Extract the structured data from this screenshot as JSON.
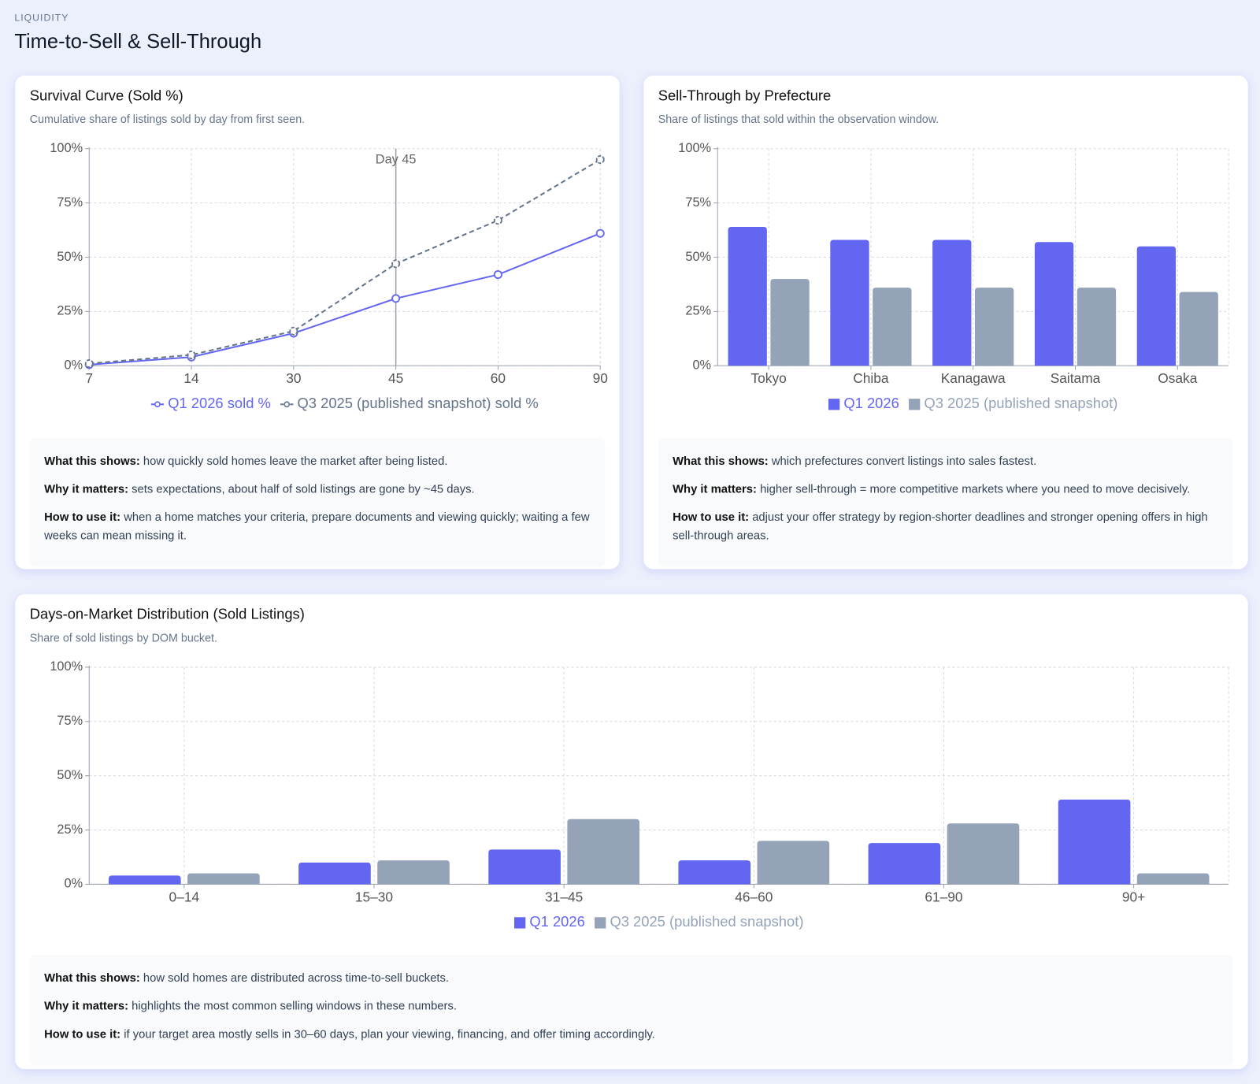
{
  "header": {
    "eyebrow": "LIQUIDITY",
    "title": "Time-to-Sell & Sell-Through"
  },
  "chart_data": [
    {
      "type": "line",
      "title": "Survival Curve (Sold %)",
      "subtitle": "Cumulative share of listings sold by day from first seen.",
      "categories": [
        "7",
        "14",
        "30",
        "45",
        "60",
        "90"
      ],
      "series": [
        {
          "name": "Q1 2026 sold %",
          "color": "#6366f1",
          "line_style": "solid",
          "values": [
            0.5,
            4,
            15,
            31,
            42,
            61
          ]
        },
        {
          "name": "Q3 2025 (published snapshot) sold %",
          "color": "#64748b",
          "line_style": "dashed",
          "values": [
            1,
            5,
            16,
            47,
            67,
            95
          ]
        }
      ],
      "ylim": [
        0,
        100
      ],
      "yticks": [
        {
          "value": 0,
          "label": "0%"
        },
        {
          "value": 25,
          "label": "25%"
        },
        {
          "value": 50,
          "label": "50%"
        },
        {
          "value": 75,
          "label": "75%"
        },
        {
          "value": 100,
          "label": "100%"
        }
      ],
      "grid": true,
      "annotation": {
        "x": "45",
        "text": "Day 45"
      },
      "notes": [
        {
          "lead": "What this shows:",
          "text": "how quickly sold homes leave the market after being listed."
        },
        {
          "lead": "Why it matters:",
          "text": "sets expectations, about half of sold listings are gone by ~45 days."
        },
        {
          "lead": "How to use it:",
          "text": "when a home matches your criteria, prepare documents and viewing quickly; waiting a few weeks can mean missing it."
        }
      ]
    },
    {
      "type": "bar",
      "title": "Sell-Through by Prefecture",
      "subtitle": "Share of listings that sold within the observation window.",
      "categories": [
        "Tokyo",
        "Chiba",
        "Kanagawa",
        "Saitama",
        "Osaka"
      ],
      "series": [
        {
          "name": "Q1 2026",
          "color": "#6366f1",
          "values": [
            64,
            58,
            58,
            57,
            55
          ]
        },
        {
          "name": "Q3 2025 (published snapshot)",
          "color": "#94a3b8",
          "values": [
            40,
            36,
            36,
            36,
            34
          ]
        }
      ],
      "ylim": [
        0,
        100
      ],
      "yticks": [
        {
          "value": 0,
          "label": "0%"
        },
        {
          "value": 25,
          "label": "25%"
        },
        {
          "value": 50,
          "label": "50%"
        },
        {
          "value": 75,
          "label": "75%"
        },
        {
          "value": 100,
          "label": "100%"
        }
      ],
      "grid": true,
      "notes": [
        {
          "lead": "What this shows:",
          "text": "which prefectures convert listings into sales fastest."
        },
        {
          "lead": "Why it matters:",
          "text": "higher sell-through = more competitive markets where you need to move decisively."
        },
        {
          "lead": "How to use it:",
          "text": "adjust your offer strategy by region-shorter deadlines and stronger opening offers in high sell-through areas."
        }
      ]
    },
    {
      "type": "bar",
      "title": "Days-on-Market Distribution (Sold Listings)",
      "subtitle": "Share of sold listings by DOM bucket.",
      "categories": [
        "0–14",
        "15–30",
        "31–45",
        "46–60",
        "61–90",
        "90+"
      ],
      "series": [
        {
          "name": "Q1 2026",
          "color": "#6366f1",
          "values": [
            4,
            10,
            16,
            11,
            19,
            39
          ]
        },
        {
          "name": "Q3 2025 (published snapshot)",
          "color": "#94a3b8",
          "values": [
            5,
            11,
            30,
            20,
            28,
            5
          ]
        }
      ],
      "ylim": [
        0,
        100
      ],
      "yticks": [
        {
          "value": 0,
          "label": "0%"
        },
        {
          "value": 25,
          "label": "25%"
        },
        {
          "value": 50,
          "label": "50%"
        },
        {
          "value": 75,
          "label": "75%"
        },
        {
          "value": 100,
          "label": "100%"
        }
      ],
      "grid": true,
      "notes": [
        {
          "lead": "What this shows:",
          "text": "how sold homes are distributed across time-to-sell buckets."
        },
        {
          "lead": "Why it matters:",
          "text": "highlights the most common selling windows in these numbers."
        },
        {
          "lead": "How to use it:",
          "text": "if your target area mostly sells in 30–60 days, plan your viewing, financing, and offer timing accordingly."
        }
      ]
    }
  ]
}
